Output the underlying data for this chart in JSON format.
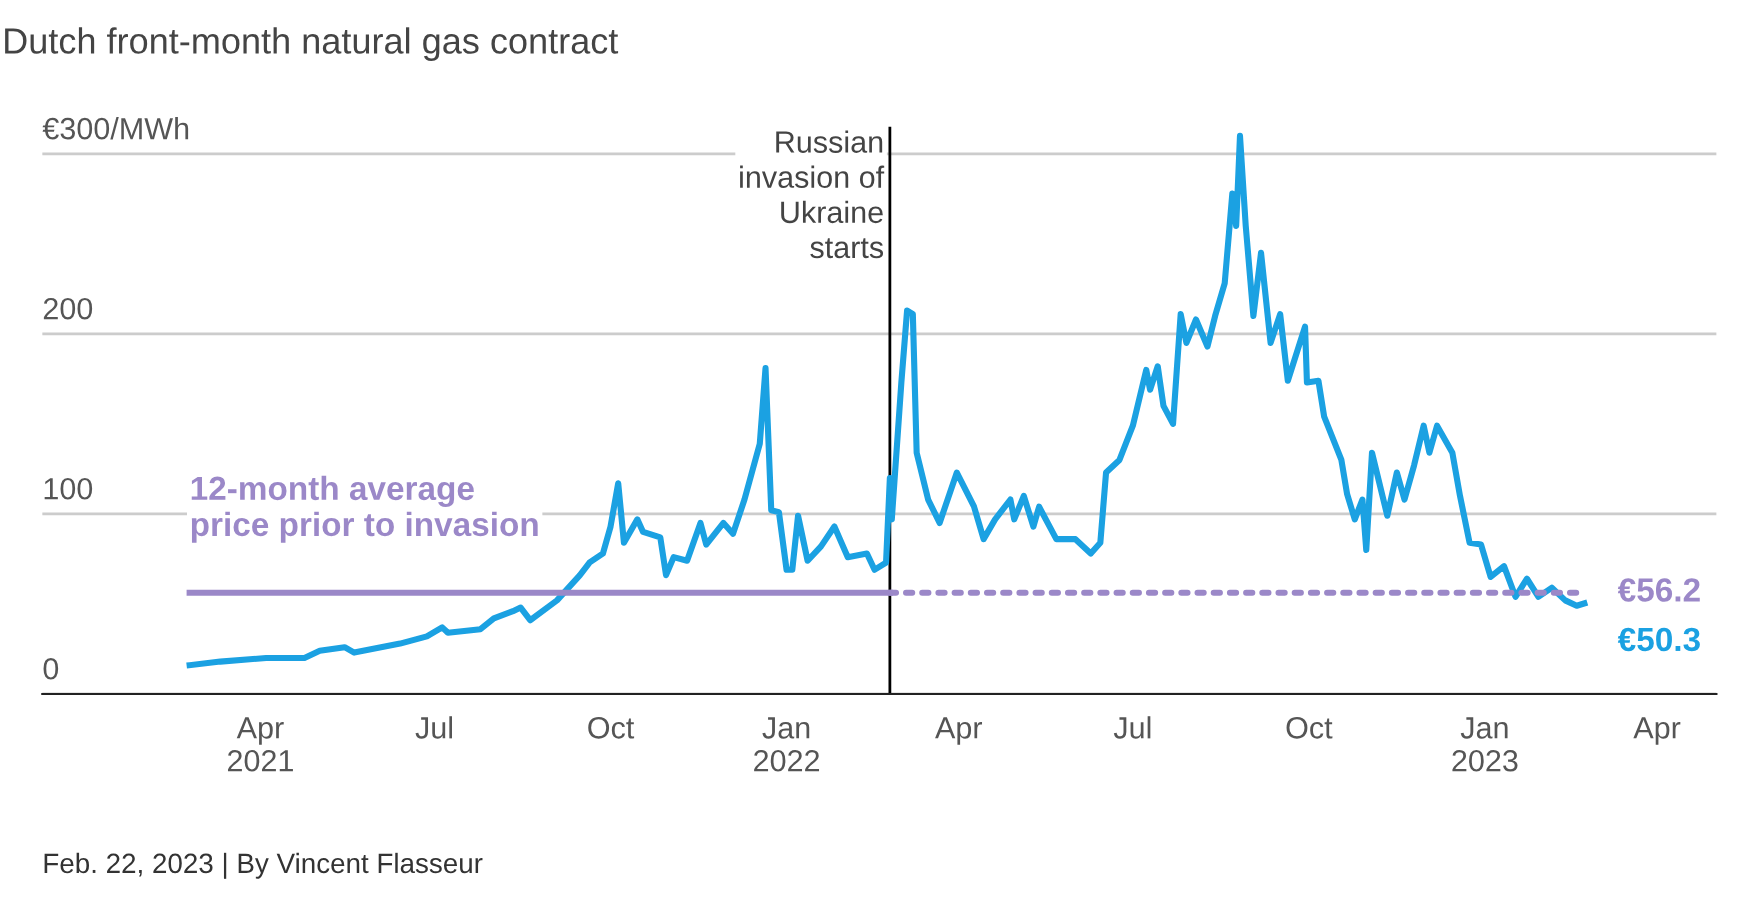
{
  "chart_data": {
    "type": "line",
    "title": "Dutch front-month natural gas contract",
    "xlim": [
      "2020-12-08",
      "2023-05-02"
    ],
    "xticks": [
      {
        "value": "2021-04-01",
        "label": "Apr\n2021"
      },
      {
        "value": "2021-07-01",
        "label": "Jul"
      },
      {
        "value": "2021-10-01",
        "label": "Oct"
      },
      {
        "value": "2022-01-01",
        "label": "Jan\n2022"
      },
      {
        "value": "2022-04-01",
        "label": "Apr"
      },
      {
        "value": "2022-07-01",
        "label": "Jul"
      },
      {
        "value": "2022-10-01",
        "label": "Oct"
      },
      {
        "value": "2023-01-01",
        "label": "Jan\n2023"
      },
      {
        "value": "2023-04-01",
        "label": "Apr"
      }
    ],
    "ylim": [
      0,
      315
    ],
    "yticks": [
      0,
      100,
      200,
      {
        "value": 300,
        "label": "€300/MWh"
      }
    ],
    "grid": "y",
    "legend": false,
    "line_style": "solid",
    "marker": "none",
    "series": [
      {
        "color": "#1ba1e2",
        "x": [
          "2021-02-23",
          "2021-03-11",
          "2021-04-04",
          "2021-04-24",
          "2021-05-02",
          "2021-05-15",
          "2021-05-20",
          "2021-06-13",
          "2021-06-27",
          "2021-07-05",
          "2021-07-08",
          "2021-07-25",
          "2021-08-01",
          "2021-08-11",
          "2021-08-15",
          "2021-08-20",
          "2021-09-03",
          "2021-09-15",
          "2021-09-20",
          "2021-09-27",
          "2021-10-01",
          "2021-10-05",
          "2021-10-08",
          "2021-10-15",
          "2021-10-18",
          "2021-10-27",
          "2021-10-30",
          "2021-11-03",
          "2021-11-10",
          "2021-11-17",
          "2021-11-20",
          "2021-11-29",
          "2021-12-04",
          "2021-12-10",
          "2021-12-18",
          "2021-12-21",
          "2021-12-24",
          "2021-12-28",
          "2022-01-01",
          "2022-01-04",
          "2022-01-07",
          "2022-01-12",
          "2022-01-19",
          "2022-01-26",
          "2022-02-02",
          "2022-02-12",
          "2022-02-16",
          "2022-02-22",
          "2022-02-24",
          "2022-02-25",
          "2022-03-02",
          "2022-03-05",
          "2022-03-08",
          "2022-03-10",
          "2022-03-16",
          "2022-03-22",
          "2022-03-31",
          "2022-04-09",
          "2022-04-14",
          "2022-04-20",
          "2022-04-28",
          "2022-04-30",
          "2022-05-05",
          "2022-05-10",
          "2022-05-13",
          "2022-05-22",
          "2022-06-01",
          "2022-06-09",
          "2022-06-14",
          "2022-06-17",
          "2022-06-24",
          "2022-07-01",
          "2022-07-08",
          "2022-07-10",
          "2022-07-14",
          "2022-07-17",
          "2022-07-22",
          "2022-07-26",
          "2022-07-29",
          "2022-08-03",
          "2022-08-09",
          "2022-08-13",
          "2022-08-18",
          "2022-08-22",
          "2022-08-24",
          "2022-08-26",
          "2022-08-29",
          "2022-09-02",
          "2022-09-06",
          "2022-09-11",
          "2022-09-16",
          "2022-09-20",
          "2022-09-29",
          "2022-09-30",
          "2022-10-06",
          "2022-10-09",
          "2022-10-18",
          "2022-10-21",
          "2022-10-25",
          "2022-10-29",
          "2022-10-31",
          "2022-11-03",
          "2022-11-11",
          "2022-11-16",
          "2022-11-20",
          "2022-11-25",
          "2022-11-30",
          "2022-12-03",
          "2022-12-07",
          "2022-12-15",
          "2022-12-19",
          "2022-12-24",
          "2022-12-30",
          "2023-01-04",
          "2023-01-11",
          "2023-01-17",
          "2023-01-23",
          "2023-01-29",
          "2023-02-05",
          "2023-02-12",
          "2023-02-18",
          "2023-02-22"
        ],
        "values": [
          16,
          18,
          20,
          20,
          24,
          26,
          23,
          28,
          32,
          37,
          34,
          36,
          42,
          46,
          48,
          41,
          52,
          66,
          73,
          78,
          93,
          117,
          84,
          97,
          90,
          87,
          66,
          76,
          74,
          95,
          83,
          95,
          89,
          108,
          139,
          181,
          102,
          101,
          69,
          69,
          99,
          74,
          82,
          93,
          76,
          78,
          69,
          73,
          120,
          97,
          173,
          213,
          211,
          134,
          108,
          95,
          123,
          104,
          86,
          97,
          108,
          97,
          110,
          93,
          104,
          86,
          86,
          78,
          84,
          123,
          130,
          149,
          180,
          169,
          182,
          160,
          150,
          211,
          195,
          208,
          193,
          210,
          228,
          278,
          260,
          310,
          260,
          210,
          245,
          195,
          211,
          174,
          204,
          173,
          174,
          154,
          130,
          111,
          97,
          108,
          80,
          134,
          99,
          123,
          108,
          127,
          149,
          134,
          149,
          134,
          110,
          84,
          83,
          65,
          71,
          54,
          64,
          54,
          59,
          52,
          49,
          50.3
        ]
      },
      {
        "color": "#9b88c8",
        "x": [
          "2021-02-23",
          "2022-02-24"
        ],
        "values": [
          56.2,
          56.2
        ],
        "line_style": "solid"
      },
      {
        "color": "#9b88c8",
        "x": [
          "2022-02-24",
          "2023-02-22"
        ],
        "values": [
          56.2,
          56.2
        ],
        "line_style": "dotted"
      }
    ],
    "ref_lines": [
      {
        "axis": "x",
        "value": "2022-02-24",
        "label": "Russian\ninvasion of\nUkraine\nstarts",
        "color": "#000000"
      }
    ],
    "annotations": [
      {
        "text": "12-month average\nprice prior to invasion",
        "x": "2021-02-23",
        "y": 56.2
      },
      {
        "text": "€56.2",
        "x": "2023-02-22",
        "y": 56.2
      },
      {
        "text": "€50.3",
        "x": "2023-02-22",
        "y": 50.3
      },
      "Feb. 22, 2023 | By Vincent Flasseur"
    ]
  }
}
